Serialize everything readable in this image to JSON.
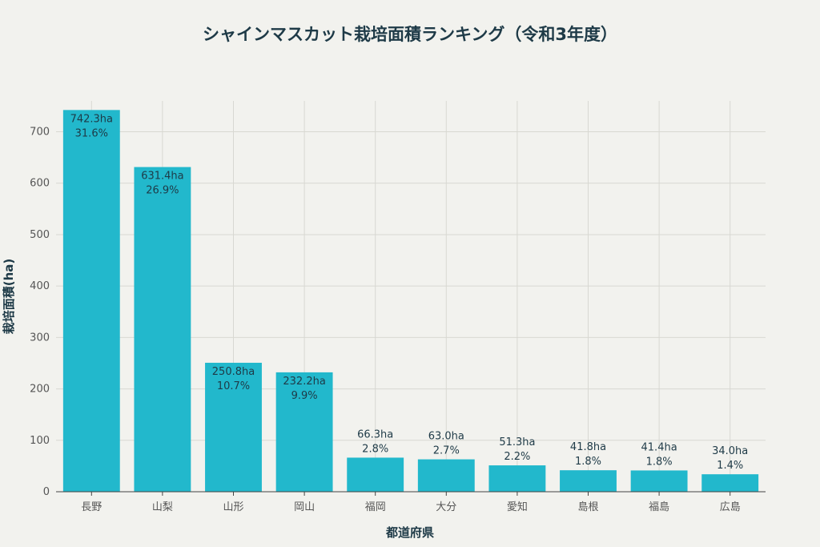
{
  "chart_data": {
    "type": "bar",
    "title": "シャインマスカット栽培面積ランキング（令和3年度）",
    "xlabel": "都道府県",
    "ylabel": "栽培面積(ha)",
    "ylim": [
      0,
      760
    ],
    "yticks": [
      0,
      100,
      200,
      300,
      400,
      500,
      600,
      700
    ],
    "grid": true,
    "categories": [
      "長野",
      "山梨",
      "山形",
      "岡山",
      "福岡",
      "大分",
      "愛知",
      "島根",
      "福島",
      "広島"
    ],
    "values": [
      742.3,
      631.4,
      250.8,
      232.2,
      66.3,
      63.0,
      51.3,
      41.8,
      41.4,
      34.0
    ],
    "value_labels": [
      "742.3ha",
      "631.4ha",
      "250.8ha",
      "232.2ha",
      "66.3ha",
      "63.0ha",
      "51.3ha",
      "41.8ha",
      "41.4ha",
      "34.0ha"
    ],
    "share_labels": [
      "31.6%",
      "26.9%",
      "10.7%",
      "9.9%",
      "2.8%",
      "2.7%",
      "2.2%",
      "1.8%",
      "1.8%",
      "1.4%"
    ],
    "bar_color": "#22b8cc"
  }
}
